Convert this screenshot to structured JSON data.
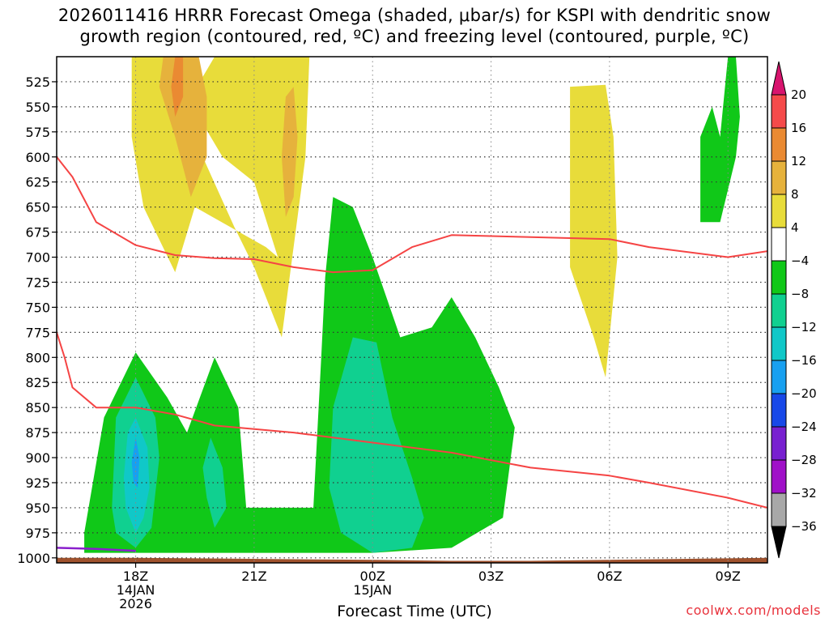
{
  "chart_data": {
    "type": "contour",
    "title_line1": "2026011416 HRRR Forecast Omega (shaded, μbar/s) for KSPI with dendritic snow",
    "title_line2": "growth region (contoured, red, ºC) and freezing level (contoured, purple, ºC)",
    "xlabel": "Forecast Time (UTC)",
    "x_hours_range": [
      -2,
      16
    ],
    "x_ticks": [
      {
        "hour": 0,
        "label": "18Z",
        "sub1": "14JAN",
        "sub2": "2026"
      },
      {
        "hour": 3,
        "label": "21Z",
        "sub1": "",
        "sub2": ""
      },
      {
        "hour": 6,
        "label": "00Z",
        "sub1": "15JAN",
        "sub2": ""
      },
      {
        "hour": 9,
        "label": "03Z",
        "sub1": "",
        "sub2": ""
      },
      {
        "hour": 12,
        "label": "06Z",
        "sub1": "",
        "sub2": ""
      },
      {
        "hour": 15,
        "label": "09Z",
        "sub1": "",
        "sub2": ""
      }
    ],
    "y_range_mb": [
      1005,
      500
    ],
    "y_ticks": [
      "525",
      "550",
      "575",
      "600",
      "625",
      "650",
      "675",
      "700",
      "725",
      "750",
      "775",
      "800",
      "825",
      "850",
      "875",
      "900",
      "925",
      "950",
      "975",
      "1000"
    ],
    "colorbar": {
      "labels": [
        "20",
        "16",
        "12",
        "8",
        "4",
        "−4",
        "−8",
        "−12",
        "−16",
        "−20",
        "−24",
        "−28",
        "−32",
        "−36"
      ],
      "colors": [
        "#d8146e",
        "#f54a4a",
        "#ea8a32",
        "#e6b23c",
        "#e8dc3a",
        "#ffffff",
        "#10c818",
        "#10d090",
        "#10c8c8",
        "#18a0f0",
        "#1848e8",
        "#7820d0",
        "#a010c8",
        "#a8a8a8",
        "#000000"
      ]
    },
    "omega_regions": [
      {
        "level": "4",
        "color": "#e8dc3a",
        "points": [
          [
            -0.1,
            500
          ],
          [
            1.5,
            500
          ],
          [
            1.7,
            600
          ],
          [
            2.5,
            670
          ],
          [
            3.0,
            710
          ],
          [
            3.6,
            770
          ],
          [
            3.7,
            780
          ],
          [
            4.3,
            600
          ],
          [
            4.4,
            500
          ],
          [
            4.4,
            500
          ],
          [
            2.0,
            500
          ],
          [
            1.7,
            520
          ],
          [
            1.6,
            560
          ],
          [
            2.2,
            600
          ],
          [
            3.0,
            625
          ],
          [
            3.6,
            700
          ],
          [
            3.3,
            690
          ],
          [
            1.5,
            650
          ],
          [
            1.0,
            715
          ],
          [
            0.2,
            650
          ],
          [
            -0.1,
            580
          ]
        ]
      },
      {
        "level": "4",
        "color": "#e8dc3a",
        "points": [
          [
            11.0,
            530
          ],
          [
            11.9,
            528
          ],
          [
            12.1,
            580
          ],
          [
            12.2,
            700
          ],
          [
            12.0,
            780
          ],
          [
            11.9,
            820
          ],
          [
            11.6,
            780
          ],
          [
            11.0,
            710
          ]
        ]
      },
      {
        "level": "8",
        "color": "#e6b23c",
        "points": [
          [
            0.7,
            500
          ],
          [
            1.6,
            500
          ],
          [
            1.8,
            540
          ],
          [
            1.8,
            600
          ],
          [
            1.4,
            640
          ],
          [
            1.0,
            580
          ],
          [
            0.6,
            530
          ]
        ]
      },
      {
        "level": "8",
        "color": "#e6b23c",
        "points": [
          [
            3.8,
            540
          ],
          [
            4.0,
            530
          ],
          [
            4.1,
            580
          ],
          [
            4.0,
            640
          ],
          [
            3.8,
            660
          ],
          [
            3.7,
            600
          ]
        ]
      },
      {
        "level": "12",
        "color": "#ea8a32",
        "points": [
          [
            1.0,
            500
          ],
          [
            1.2,
            500
          ],
          [
            1.2,
            540
          ],
          [
            1.0,
            560
          ],
          [
            0.9,
            530
          ]
        ]
      },
      {
        "level": "-4",
        "color": "#10c818",
        "points": [
          [
            -1.3,
            975
          ],
          [
            -0.8,
            860
          ],
          [
            0.0,
            795
          ],
          [
            0.8,
            840
          ],
          [
            1.3,
            875
          ],
          [
            2.0,
            800
          ],
          [
            2.6,
            850
          ],
          [
            2.8,
            950
          ],
          [
            4.5,
            950
          ],
          [
            4.7,
            800
          ],
          [
            4.8,
            720
          ],
          [
            5.0,
            640
          ],
          [
            5.5,
            650
          ],
          [
            6.0,
            700
          ],
          [
            6.7,
            780
          ],
          [
            7.5,
            770
          ],
          [
            8.0,
            740
          ],
          [
            8.6,
            780
          ],
          [
            9.2,
            830
          ],
          [
            9.6,
            870
          ],
          [
            9.3,
            960
          ],
          [
            8.0,
            990
          ],
          [
            6.0,
            995
          ],
          [
            2.0,
            995
          ],
          [
            -1.3,
            995
          ]
        ]
      },
      {
        "level": "-4",
        "color": "#10c818",
        "points": [
          [
            14.8,
            580
          ],
          [
            15.0,
            500
          ],
          [
            15.2,
            500
          ],
          [
            15.3,
            560
          ],
          [
            15.2,
            600
          ],
          [
            14.8,
            665
          ],
          [
            14.8,
            665
          ],
          [
            14.3,
            665
          ],
          [
            14.3,
            580
          ],
          [
            14.6,
            550
          ]
        ]
      },
      {
        "level": "-8",
        "color": "#10d090",
        "points": [
          [
            -0.6,
            950
          ],
          [
            -0.5,
            860
          ],
          [
            0.0,
            820
          ],
          [
            0.5,
            860
          ],
          [
            0.6,
            900
          ],
          [
            0.4,
            970
          ],
          [
            0.0,
            990
          ],
          [
            -0.5,
            975
          ]
        ]
      },
      {
        "level": "-8",
        "color": "#10d090",
        "points": [
          [
            1.7,
            910
          ],
          [
            1.9,
            880
          ],
          [
            2.2,
            910
          ],
          [
            2.3,
            950
          ],
          [
            2.0,
            970
          ],
          [
            1.8,
            940
          ]
        ]
      },
      {
        "level": "-8",
        "color": "#10d090",
        "points": [
          [
            5.0,
            850
          ],
          [
            5.5,
            780
          ],
          [
            6.1,
            785
          ],
          [
            6.5,
            860
          ],
          [
            7.0,
            920
          ],
          [
            7.3,
            960
          ],
          [
            7.0,
            990
          ],
          [
            6.0,
            995
          ],
          [
            5.2,
            975
          ],
          [
            4.9,
            930
          ]
        ]
      },
      {
        "level": "-12",
        "color": "#10c8c8",
        "points": [
          [
            -0.3,
            920
          ],
          [
            -0.2,
            875
          ],
          [
            0.0,
            860
          ],
          [
            0.3,
            890
          ],
          [
            0.35,
            930
          ],
          [
            0.2,
            960
          ],
          [
            0.0,
            975
          ],
          [
            -0.25,
            950
          ]
        ]
      },
      {
        "level": "-16",
        "color": "#18a0f0",
        "points": [
          [
            -0.1,
            905
          ],
          [
            0.0,
            880
          ],
          [
            0.1,
            900
          ],
          [
            0.05,
            930
          ],
          [
            -0.05,
            925
          ]
        ]
      }
    ],
    "dgz_upper_c": [
      [
        -2,
        600
      ],
      [
        -1.6,
        620
      ],
      [
        -1.0,
        665
      ],
      [
        0.0,
        688
      ],
      [
        1.0,
        698
      ],
      [
        2.0,
        701
      ],
      [
        3.0,
        702
      ],
      [
        4.0,
        710
      ],
      [
        5.0,
        715
      ],
      [
        6.0,
        713
      ],
      [
        7.0,
        690
      ],
      [
        8.0,
        678
      ],
      [
        10.0,
        680
      ],
      [
        12.0,
        682
      ],
      [
        13.0,
        690
      ],
      [
        15.0,
        700
      ],
      [
        16.0,
        694
      ]
    ],
    "dgz_lower_c": [
      [
        -2,
        775
      ],
      [
        -1.8,
        800
      ],
      [
        -1.6,
        830
      ],
      [
        -1.0,
        850
      ],
      [
        0.0,
        850
      ],
      [
        1.0,
        857
      ],
      [
        2.0,
        868
      ],
      [
        4.0,
        875
      ],
      [
        6.0,
        885
      ],
      [
        8.0,
        895
      ],
      [
        10.0,
        910
      ],
      [
        12.0,
        918
      ],
      [
        13.0,
        925
      ],
      [
        15.0,
        940
      ],
      [
        16.0,
        950
      ]
    ],
    "freezing_level": [
      [
        -2,
        990
      ],
      [
        -1,
        991
      ],
      [
        0,
        993
      ]
    ],
    "ground": [
      [
        -2,
        1000
      ],
      [
        -1,
        1000
      ],
      [
        0,
        1000
      ],
      [
        6,
        1002
      ],
      [
        8,
        1003
      ],
      [
        10,
        1003
      ],
      [
        14,
        1001
      ],
      [
        16,
        1000
      ]
    ],
    "series_colors": {
      "dgz": "#f54444",
      "freezing": "#8a1fcc",
      "ground": "#a0522d"
    }
  },
  "footer": {
    "xlabel": "Forecast Time (UTC)",
    "credit": "coolwx.com/models"
  }
}
